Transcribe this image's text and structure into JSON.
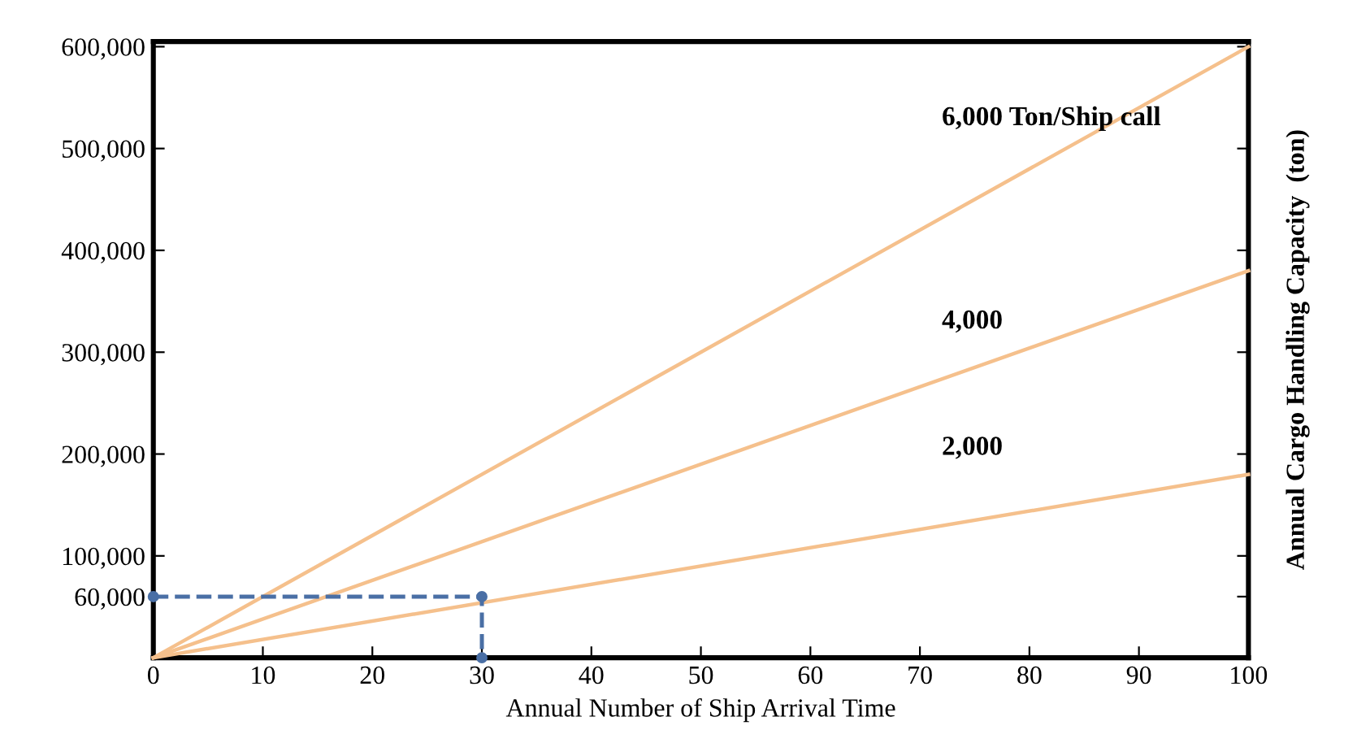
{
  "chart_data": {
    "type": "line",
    "xlabel": "Annual Number of Ship Arrival Time",
    "y2label": "Annual Cargo Handling Capacity  (ton)",
    "xlim": [
      0,
      100
    ],
    "ylim": [
      0,
      605000
    ],
    "xticks": [
      0,
      10,
      20,
      30,
      40,
      50,
      60,
      70,
      80,
      90,
      100
    ],
    "yticks": [
      {
        "value": 60000,
        "label": "60,000"
      },
      {
        "value": 100000,
        "label": "100,000"
      },
      {
        "value": 200000,
        "label": "200,000"
      },
      {
        "value": 300000,
        "label": "300,000"
      },
      {
        "value": 400000,
        "label": "400,000"
      },
      {
        "value": 500000,
        "label": "500,000"
      },
      {
        "value": 600000,
        "label": "600,000"
      }
    ],
    "grid": false,
    "legend": false,
    "series": [
      {
        "color": "#f5c08c",
        "x": [
          0,
          100
        ],
        "values": [
          0,
          600000
        ]
      },
      {
        "color": "#f5c08c",
        "x": [
          0,
          100
        ],
        "values": [
          0,
          380000
        ]
      },
      {
        "color": "#f5c08c",
        "x": [
          0,
          100
        ],
        "values": [
          0,
          180000
        ]
      },
      {
        "color": "#4a6fa5",
        "x": [
          0,
          30,
          30
        ],
        "values": [
          60000,
          60000,
          0
        ],
        "line_style": "dashed",
        "marker": "circle"
      }
    ],
    "annotations": [
      "6,000 Ton/Ship call",
      "4,000",
      "2,000"
    ]
  }
}
